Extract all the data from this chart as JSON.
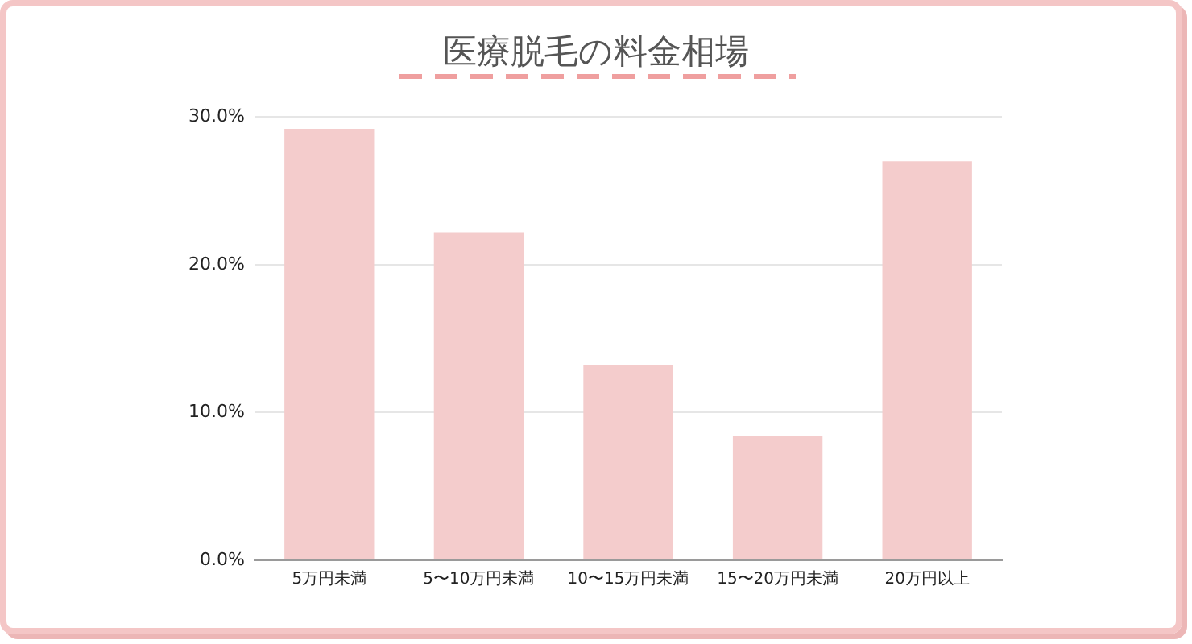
{
  "chart_data": {
    "type": "bar",
    "title": "医療脱毛の料金相場",
    "categories": [
      "5万円未満",
      "5〜10万円未満",
      "10〜15万円未満",
      "15〜20万円未満",
      "20万円以上"
    ],
    "values": [
      29.2,
      22.2,
      13.2,
      8.4,
      27.0
    ],
    "color": "#f4cccc",
    "ylim": [
      0,
      30
    ],
    "yticks": [
      {
        "value": 0,
        "label": "0.0%"
      },
      {
        "value": 10,
        "label": "10.0%"
      },
      {
        "value": 20,
        "label": "20.0%"
      },
      {
        "value": 30,
        "label": "30.0%"
      }
    ],
    "grid": "y"
  }
}
